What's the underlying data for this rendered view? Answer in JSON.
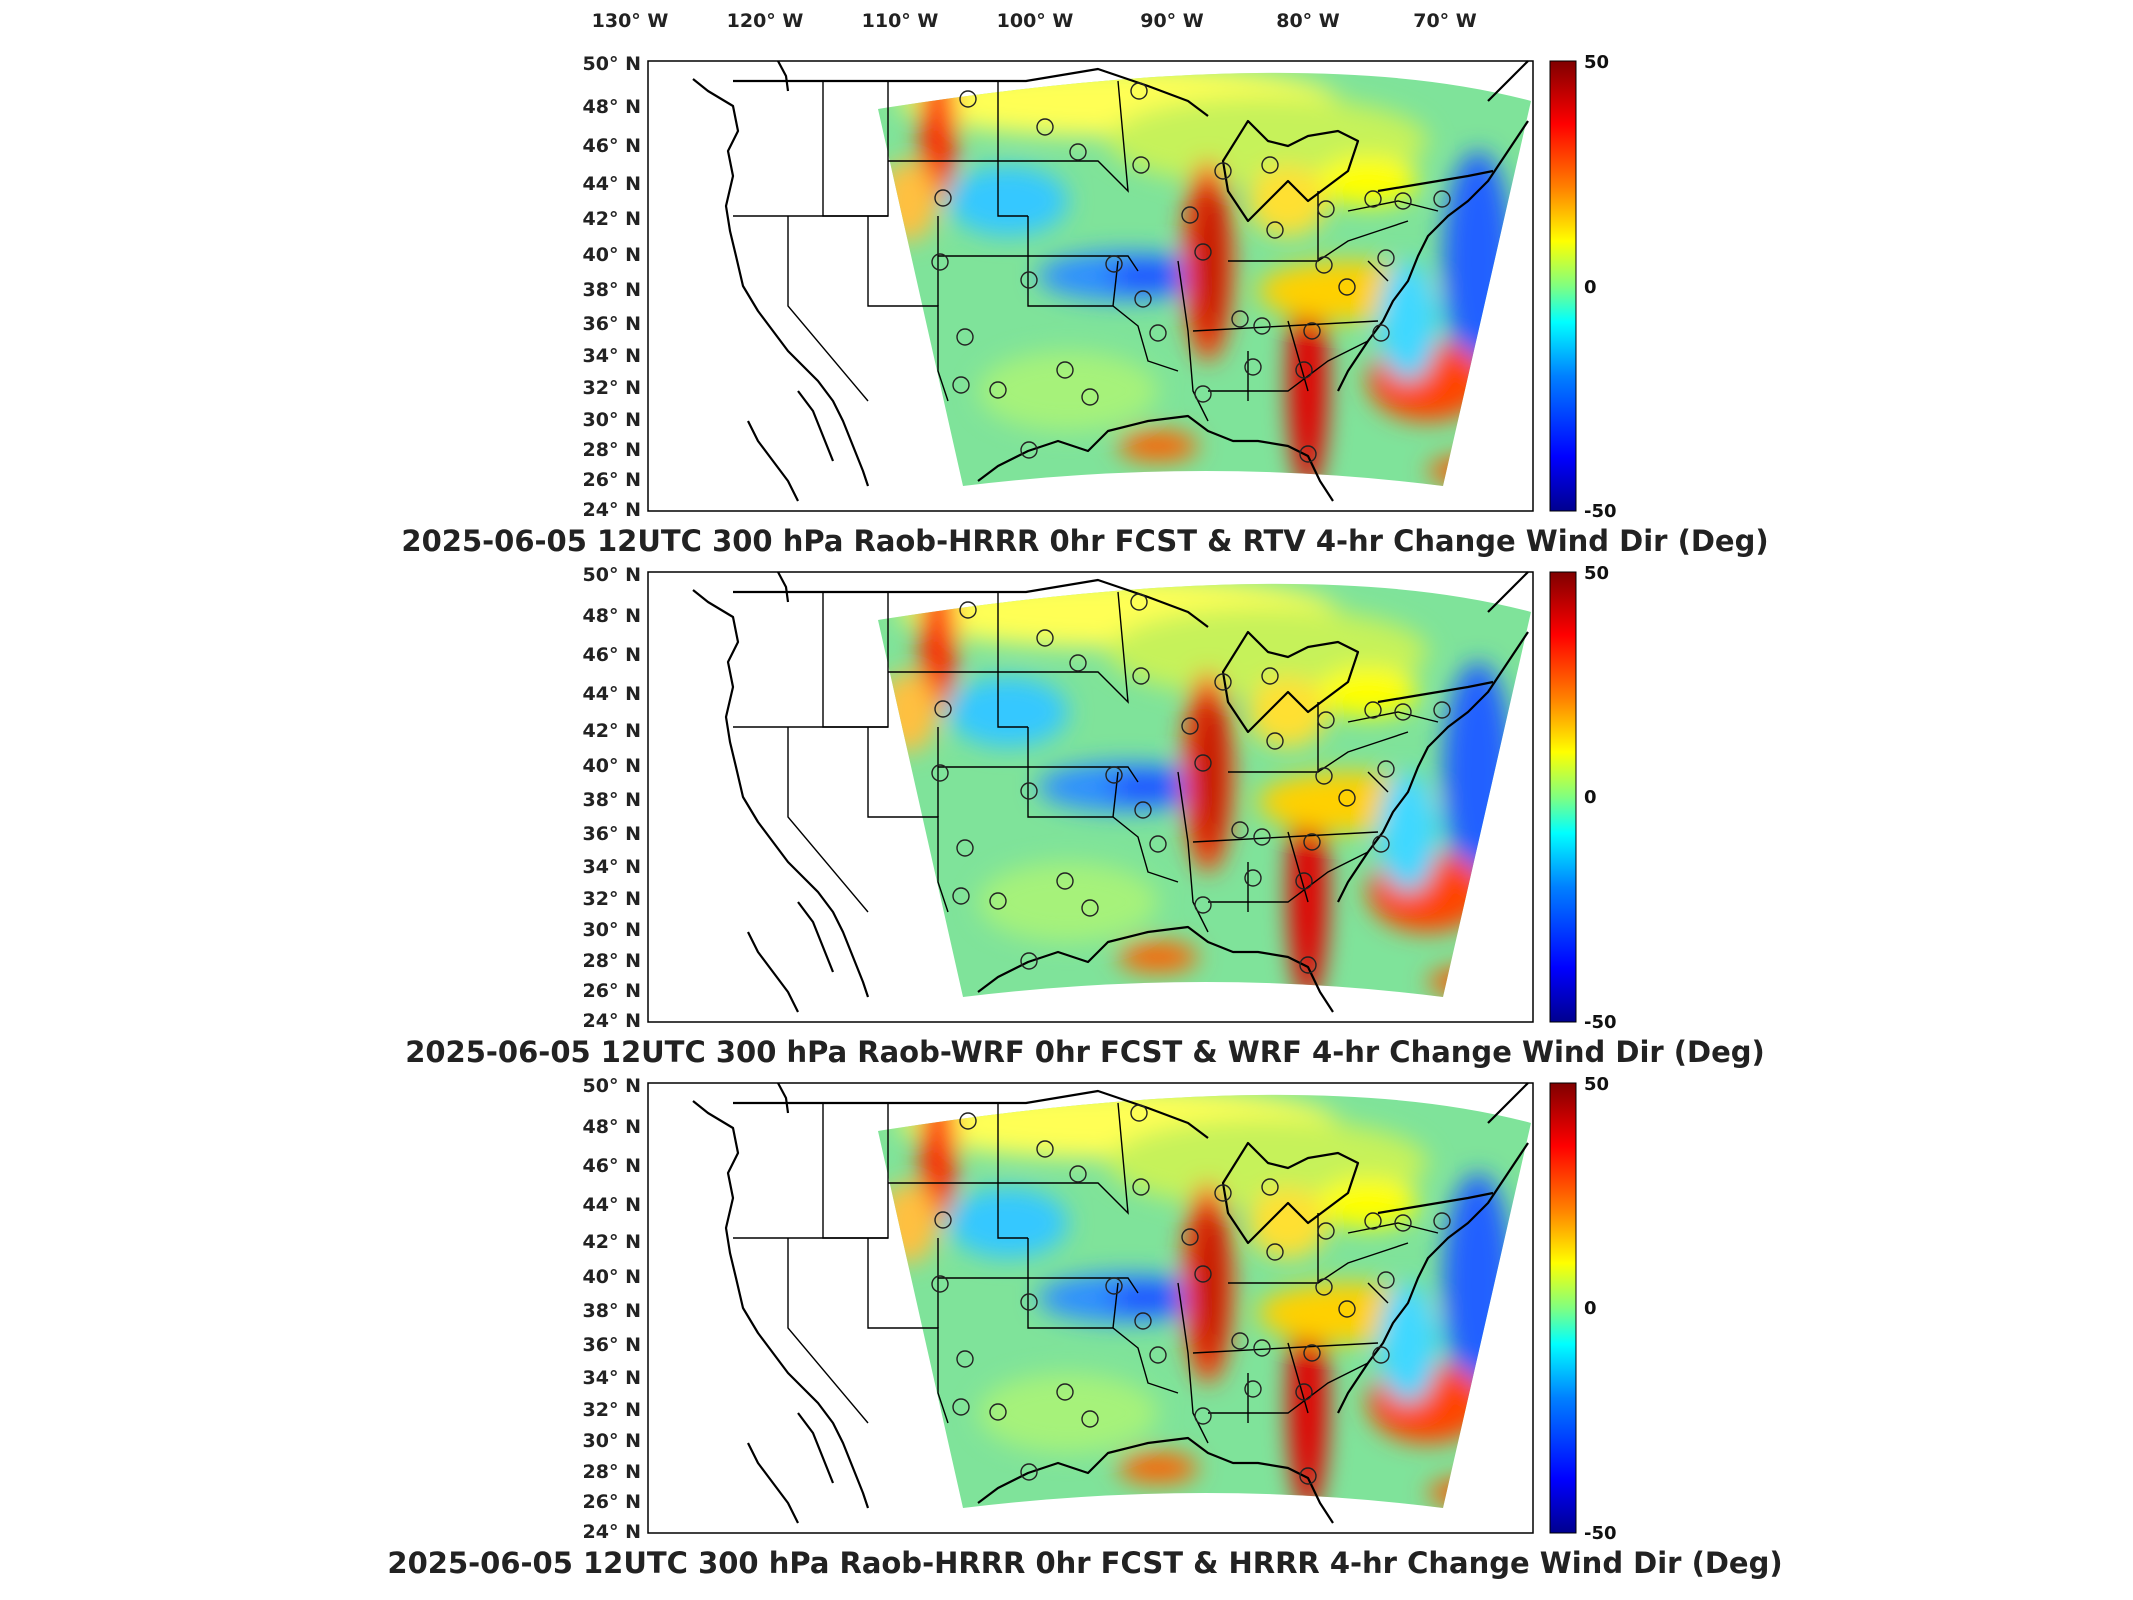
{
  "lon_labels": [
    "130° W",
    "120° W",
    "110° W",
    "100° W",
    "90° W",
    "80° W",
    "70° W"
  ],
  "lat_labels": [
    "50° N",
    "48° N",
    "46° N",
    "44° N",
    "42° N",
    "40° N",
    "38° N",
    "36° N",
    "34° N",
    "32° N",
    "30° N",
    "28° N",
    "26° N",
    "24° N"
  ],
  "colorbar": {
    "max_label": "50",
    "mid_label": "0",
    "min_label": "-50",
    "colors": [
      "#00008f",
      "#0000ff",
      "#0080ff",
      "#00ffff",
      "#80ff80",
      "#ffff00",
      "#ff8000",
      "#ff0000",
      "#800000"
    ]
  },
  "panels": [
    {
      "title": "2025-06-05 12UTC 300 hPa Raob-HRRR 0hr FCST & RTV 4-hr Change Wind Dir (Deg)"
    },
    {
      "title": "2025-06-05 12UTC 300 hPa Raob-WRF 0hr FCST & WRF 4-hr Change Wind Dir (Deg)"
    },
    {
      "title": "2025-06-05 12UTC 300 hPa Raob-HRRR 0hr FCST & HRRR 4-hr Change Wind Dir (Deg)"
    }
  ]
}
